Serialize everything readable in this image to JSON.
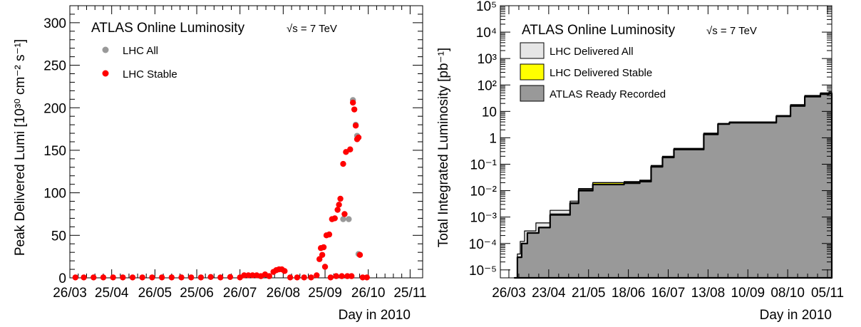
{
  "chart_data": [
    {
      "type": "scatter",
      "title": "ATLAS Online Luminosity",
      "energy_label": "√s = 7 TeV",
      "xlabel": "Day in 2010",
      "ylabel": "Peak Delivered Lumi [10³⁰ cm⁻² s⁻¹]",
      "x_ticks": [
        "26/03",
        "25/04",
        "26/05",
        "25/06",
        "26/07",
        "26/08",
        "25/09",
        "26/10",
        "25/11"
      ],
      "x_range": [
        "2010-03-26",
        "2010-12-04"
      ],
      "y_ticks": [
        "0",
        "50",
        "100",
        "150",
        "200",
        "250",
        "300"
      ],
      "ylim": [
        0,
        320
      ],
      "legend_position": "top-left",
      "colors": {
        "all": "#999999",
        "stable": "#ff0000"
      },
      "series": [
        {
          "name": "LHC All",
          "color": "#999999",
          "points": [
            {
              "x": "2010-10-15",
              "y": 209
            },
            {
              "x": "2010-10-17",
              "y": 180
            },
            {
              "x": "2010-10-18",
              "y": 167
            },
            {
              "x": "2010-10-19",
              "y": 28
            },
            {
              "x": "2010-10-12",
              "y": 69
            },
            {
              "x": "2010-10-08",
              "y": 69
            }
          ]
        },
        {
          "name": "LHC Stable",
          "color": "#ff0000",
          "points": [
            {
              "x": "2010-03-30",
              "y": 0.5
            },
            {
              "x": "2010-04-05",
              "y": 0.5
            },
            {
              "x": "2010-04-12",
              "y": 0.5
            },
            {
              "x": "2010-04-19",
              "y": 0.5
            },
            {
              "x": "2010-04-26",
              "y": 0.5
            },
            {
              "x": "2010-05-03",
              "y": 0.5
            },
            {
              "x": "2010-05-10",
              "y": 0.5
            },
            {
              "x": "2010-05-17",
              "y": 0.5
            },
            {
              "x": "2010-05-24",
              "y": 0.5
            },
            {
              "x": "2010-05-31",
              "y": 0.5
            },
            {
              "x": "2010-06-07",
              "y": 0.5
            },
            {
              "x": "2010-06-14",
              "y": 0.5
            },
            {
              "x": "2010-06-21",
              "y": 0.5
            },
            {
              "x": "2010-06-28",
              "y": 0.5
            },
            {
              "x": "2010-07-05",
              "y": 1
            },
            {
              "x": "2010-07-12",
              "y": 0.5
            },
            {
              "x": "2010-07-19",
              "y": 1
            },
            {
              "x": "2010-07-26",
              "y": 0.5
            },
            {
              "x": "2010-07-29",
              "y": 3
            },
            {
              "x": "2010-08-01",
              "y": 3
            },
            {
              "x": "2010-08-04",
              "y": 3
            },
            {
              "x": "2010-08-07",
              "y": 3
            },
            {
              "x": "2010-08-10",
              "y": 2
            },
            {
              "x": "2010-08-13",
              "y": 4
            },
            {
              "x": "2010-08-16",
              "y": 2
            },
            {
              "x": "2010-08-19",
              "y": 7
            },
            {
              "x": "2010-08-21",
              "y": 9
            },
            {
              "x": "2010-08-23",
              "y": 10
            },
            {
              "x": "2010-08-25",
              "y": 10
            },
            {
              "x": "2010-08-27",
              "y": 8
            },
            {
              "x": "2010-08-31",
              "y": 0.5
            },
            {
              "x": "2010-09-05",
              "y": 0.5
            },
            {
              "x": "2010-09-10",
              "y": 0.5
            },
            {
              "x": "2010-09-15",
              "y": 0.5
            },
            {
              "x": "2010-09-19",
              "y": 3
            },
            {
              "x": "2010-09-21",
              "y": 22
            },
            {
              "x": "2010-09-22",
              "y": 35
            },
            {
              "x": "2010-09-23",
              "y": 27
            },
            {
              "x": "2010-09-24",
              "y": 36
            },
            {
              "x": "2010-09-25",
              "y": 13
            },
            {
              "x": "2010-09-26",
              "y": 50
            },
            {
              "x": "2010-09-28",
              "y": 51
            },
            {
              "x": "2010-09-29",
              "y": 0.5
            },
            {
              "x": "2010-09-30",
              "y": 69
            },
            {
              "x": "2010-10-02",
              "y": 70
            },
            {
              "x": "2010-10-03",
              "y": 2
            },
            {
              "x": "2010-10-04",
              "y": 80
            },
            {
              "x": "2010-10-05",
              "y": 86
            },
            {
              "x": "2010-10-06",
              "y": 93
            },
            {
              "x": "2010-10-07",
              "y": 2
            },
            {
              "x": "2010-10-08",
              "y": 134
            },
            {
              "x": "2010-10-09",
              "y": 75
            },
            {
              "x": "2010-10-10",
              "y": 148
            },
            {
              "x": "2010-10-11",
              "y": 2
            },
            {
              "x": "2010-10-13",
              "y": 151
            },
            {
              "x": "2010-10-14",
              "y": 2
            },
            {
              "x": "2010-10-15",
              "y": 206
            },
            {
              "x": "2010-10-16",
              "y": 198
            },
            {
              "x": "2010-10-17",
              "y": 179
            },
            {
              "x": "2010-10-18",
              "y": 163
            },
            {
              "x": "2010-10-19",
              "y": 165
            },
            {
              "x": "2010-10-20",
              "y": 27
            },
            {
              "x": "2010-10-22",
              "y": 0.5
            },
            {
              "x": "2010-10-25",
              "y": 0.5
            }
          ]
        }
      ]
    },
    {
      "type": "area",
      "title": "ATLAS Online Luminosity",
      "energy_label": "√s = 7 TeV",
      "xlabel": "Day in 2010",
      "ylabel": "Total Integrated Luminosity [pb⁻¹]",
      "x_ticks": [
        "26/03",
        "23/04",
        "21/05",
        "18/06",
        "16/07",
        "13/08",
        "10/09",
        "08/10",
        "05/11"
      ],
      "x_range": [
        "2010-03-20",
        "2010-11-08"
      ],
      "y_scale": "log",
      "y_ticks": [
        "10⁻⁵",
        "10⁻⁴",
        "10⁻³",
        "10⁻²",
        "10⁻¹",
        "1",
        "10",
        "10²",
        "10³",
        "10⁴",
        "10⁵"
      ],
      "ylim": [
        5e-06,
        100000
      ],
      "legend_position": "top-left",
      "colors": {
        "delivered_all": "#e6e6e6",
        "delivered_stable": "#ffff00",
        "ready_recorded": "#999999"
      },
      "series": [
        {
          "name": "LHC Delivered All",
          "color": "#e6e6e6",
          "points": [
            {
              "x": "2010-03-30",
              "y": 5e-06
            },
            {
              "x": "2010-04-01",
              "y": 4e-05
            },
            {
              "x": "2010-04-03",
              "y": 0.00012
            },
            {
              "x": "2010-04-06",
              "y": 0.0003
            },
            {
              "x": "2010-04-14",
              "y": 0.0006
            },
            {
              "x": "2010-04-24",
              "y": 0.0018
            },
            {
              "x": "2010-05-01",
              "y": 0.0018
            },
            {
              "x": "2010-05-08",
              "y": 0.004
            },
            {
              "x": "2010-05-14",
              "y": 0.012
            },
            {
              "x": "2010-05-24",
              "y": 0.02
            },
            {
              "x": "2010-06-15",
              "y": 0.022
            },
            {
              "x": "2010-06-26",
              "y": 0.025
            },
            {
              "x": "2010-07-04",
              "y": 0.09
            },
            {
              "x": "2010-07-12",
              "y": 0.2
            },
            {
              "x": "2010-07-20",
              "y": 0.4
            },
            {
              "x": "2010-08-01",
              "y": 0.4
            },
            {
              "x": "2010-08-10",
              "y": 1.5
            },
            {
              "x": "2010-08-20",
              "y": 3.5
            },
            {
              "x": "2010-08-28",
              "y": 4
            },
            {
              "x": "2010-09-22",
              "y": 4
            },
            {
              "x": "2010-09-30",
              "y": 7
            },
            {
              "x": "2010-10-10",
              "y": 18
            },
            {
              "x": "2010-10-20",
              "y": 40
            },
            {
              "x": "2010-10-31",
              "y": 50
            },
            {
              "x": "2010-11-06",
              "y": 55
            }
          ]
        },
        {
          "name": "LHC Delivered Stable",
          "color": "#ffff00",
          "points": [
            {
              "x": "2010-03-30",
              "y": 5e-06
            },
            {
              "x": "2010-04-01",
              "y": 3e-05
            },
            {
              "x": "2010-04-04",
              "y": 0.0001
            },
            {
              "x": "2010-04-08",
              "y": 0.00025
            },
            {
              "x": "2010-04-16",
              "y": 0.0004
            },
            {
              "x": "2010-04-24",
              "y": 0.0013
            },
            {
              "x": "2010-05-01",
              "y": 0.0013
            },
            {
              "x": "2010-05-08",
              "y": 0.0035
            },
            {
              "x": "2010-05-14",
              "y": 0.011
            },
            {
              "x": "2010-05-24",
              "y": 0.02
            },
            {
              "x": "2010-06-15",
              "y": 0.021
            },
            {
              "x": "2010-06-26",
              "y": 0.024
            },
            {
              "x": "2010-07-04",
              "y": 0.085
            },
            {
              "x": "2010-07-12",
              "y": 0.19
            },
            {
              "x": "2010-07-20",
              "y": 0.38
            },
            {
              "x": "2010-08-01",
              "y": 0.38
            },
            {
              "x": "2010-08-10",
              "y": 1.45
            },
            {
              "x": "2010-08-20",
              "y": 3.4
            },
            {
              "x": "2010-08-28",
              "y": 3.9
            },
            {
              "x": "2010-09-22",
              "y": 3.9
            },
            {
              "x": "2010-09-30",
              "y": 6.8
            },
            {
              "x": "2010-10-10",
              "y": 17
            },
            {
              "x": "2010-10-20",
              "y": 38
            },
            {
              "x": "2010-10-31",
              "y": 48
            },
            {
              "x": "2010-11-06",
              "y": 50
            }
          ]
        },
        {
          "name": "ATLAS Ready Recorded",
          "color": "#999999",
          "points": [
            {
              "x": "2010-03-30",
              "y": 5e-06
            },
            {
              "x": "2010-04-01",
              "y": 3e-05
            },
            {
              "x": "2010-04-04",
              "y": 0.0001
            },
            {
              "x": "2010-04-08",
              "y": 0.00025
            },
            {
              "x": "2010-04-16",
              "y": 0.0004
            },
            {
              "x": "2010-04-24",
              "y": 0.0012
            },
            {
              "x": "2010-05-01",
              "y": 0.0012
            },
            {
              "x": "2010-05-08",
              "y": 0.0033
            },
            {
              "x": "2010-05-14",
              "y": 0.01
            },
            {
              "x": "2010-05-24",
              "y": 0.017
            },
            {
              "x": "2010-06-15",
              "y": 0.019
            },
            {
              "x": "2010-06-26",
              "y": 0.022
            },
            {
              "x": "2010-07-04",
              "y": 0.08
            },
            {
              "x": "2010-07-12",
              "y": 0.18
            },
            {
              "x": "2010-07-20",
              "y": 0.36
            },
            {
              "x": "2010-08-01",
              "y": 0.36
            },
            {
              "x": "2010-08-10",
              "y": 1.35
            },
            {
              "x": "2010-08-20",
              "y": 3.3
            },
            {
              "x": "2010-08-28",
              "y": 3.7
            },
            {
              "x": "2010-09-22",
              "y": 3.7
            },
            {
              "x": "2010-09-30",
              "y": 6.5
            },
            {
              "x": "2010-10-10",
              "y": 16
            },
            {
              "x": "2010-10-20",
              "y": 36
            },
            {
              "x": "2010-10-31",
              "y": 45
            },
            {
              "x": "2010-11-06",
              "y": 48
            }
          ]
        }
      ]
    }
  ]
}
